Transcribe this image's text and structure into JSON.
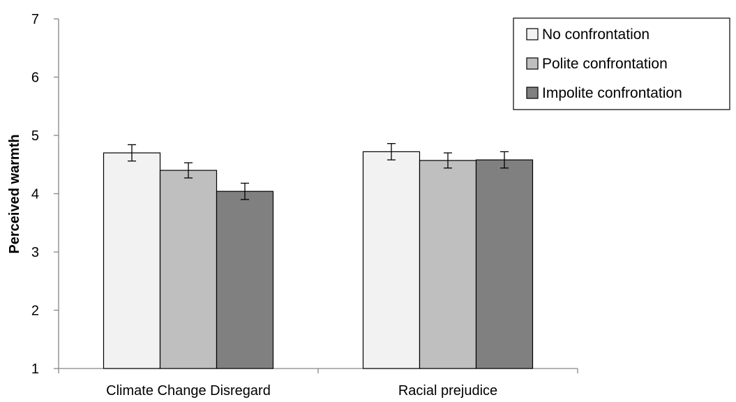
{
  "chart_data": {
    "type": "bar",
    "title": "",
    "xlabel": "",
    "ylabel": "Perceived warmth",
    "ylim": [
      1,
      7
    ],
    "yticks": [
      1,
      2,
      3,
      4,
      5,
      6,
      7
    ],
    "grid": false,
    "legend_position": "top-right",
    "categories": [
      "Climate Change Disregard",
      "Racial prejudice"
    ],
    "series": [
      {
        "name": "No confrontation",
        "color": "#f2f2f2",
        "values": [
          4.7,
          4.72
        ],
        "error": [
          0.14,
          0.14
        ]
      },
      {
        "name": "Polite confrontation",
        "color": "#bfbfbf",
        "values": [
          4.4,
          4.57
        ],
        "error": [
          0.13,
          0.13
        ]
      },
      {
        "name": "Impolite confrontation",
        "color": "#808080",
        "values": [
          4.04,
          4.58
        ],
        "error": [
          0.14,
          0.14
        ]
      }
    ]
  }
}
